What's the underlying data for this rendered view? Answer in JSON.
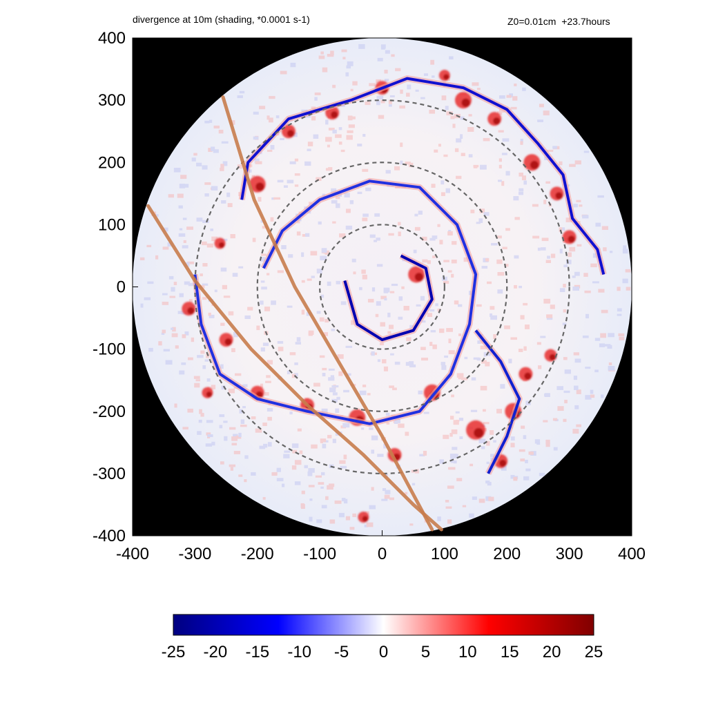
{
  "chart_data": {
    "type": "heatmap",
    "title": "divergence at 10m (shading, *0.0001 s-1)",
    "subtitle": "Z0=0.01cm  +23.7hours",
    "xlabel": "",
    "ylabel": "",
    "xlim": [
      -400,
      400
    ],
    "ylim": [
      -400,
      400
    ],
    "x_ticks": [
      -400,
      -300,
      -200,
      -100,
      0,
      100,
      200,
      300,
      400
    ],
    "y_ticks": [
      400,
      300,
      200,
      100,
      0,
      -100,
      -200,
      -300,
      -400
    ],
    "colorbar": {
      "range": [
        -25,
        25
      ],
      "ticks": [
        -25,
        -20,
        -15,
        -10,
        -5,
        0,
        5,
        10,
        15,
        20,
        25
      ],
      "colors": [
        "#000080",
        "#0000ff",
        "#ffffff",
        "#ff0000",
        "#800000"
      ]
    },
    "domain_radius": 400,
    "range_rings": [
      100,
      200,
      300
    ],
    "tracks": [
      {
        "color": "#c87c4c",
        "points": [
          [
            -255,
            305
          ],
          [
            -205,
            140
          ],
          [
            -140,
            0
          ],
          [
            -70,
            -120
          ],
          [
            0,
            -240
          ],
          [
            80,
            -390
          ]
        ]
      },
      {
        "color": "#c87c4c",
        "points": [
          [
            -375,
            130
          ],
          [
            -300,
            10
          ],
          [
            -210,
            -100
          ],
          [
            -120,
            -190
          ],
          [
            -30,
            -270
          ],
          [
            50,
            -350
          ],
          [
            95,
            -390
          ]
        ]
      }
    ],
    "rainbands": [
      {
        "points": [
          [
            -225,
            140
          ],
          [
            -215,
            200
          ],
          [
            -150,
            270
          ],
          [
            -50,
            300
          ],
          [
            40,
            335
          ],
          [
            130,
            320
          ],
          [
            200,
            285
          ],
          [
            250,
            230
          ],
          [
            290,
            180
          ],
          [
            305,
            110
          ],
          [
            345,
            60
          ],
          [
            355,
            20
          ]
        ],
        "color": "#1010d0"
      },
      {
        "points": [
          [
            -190,
            30
          ],
          [
            -160,
            90
          ],
          [
            -100,
            140
          ],
          [
            -20,
            170
          ],
          [
            60,
            160
          ],
          [
            120,
            100
          ],
          [
            150,
            20
          ],
          [
            140,
            -60
          ],
          [
            110,
            -140
          ],
          [
            60,
            -200
          ],
          [
            -20,
            -220
          ],
          [
            -120,
            -200
          ],
          [
            -200,
            -180
          ],
          [
            -260,
            -140
          ],
          [
            -290,
            -60
          ],
          [
            -300,
            20
          ]
        ],
        "color": "#2030e0"
      },
      {
        "points": [
          [
            -60,
            10
          ],
          [
            -40,
            -60
          ],
          [
            0,
            -85
          ],
          [
            50,
            -70
          ],
          [
            80,
            -20
          ],
          [
            70,
            30
          ],
          [
            30,
            50
          ]
        ],
        "color": "#0000b0"
      },
      {
        "points": [
          [
            150,
            -70
          ],
          [
            190,
            -120
          ],
          [
            220,
            -180
          ],
          [
            200,
            -240
          ],
          [
            170,
            -300
          ]
        ],
        "color": "#1020d0"
      }
    ],
    "convergence_cells": [
      {
        "x": 55,
        "y": 20,
        "r": 12
      },
      {
        "x": -310,
        "y": -35,
        "r": 10
      },
      {
        "x": -200,
        "y": 165,
        "r": 12
      },
      {
        "x": -150,
        "y": 250,
        "r": 10
      },
      {
        "x": -80,
        "y": 280,
        "r": 10
      },
      {
        "x": 0,
        "y": 320,
        "r": 10
      },
      {
        "x": 130,
        "y": 300,
        "r": 12
      },
      {
        "x": 180,
        "y": 270,
        "r": 10
      },
      {
        "x": 240,
        "y": 200,
        "r": 12
      },
      {
        "x": 280,
        "y": 150,
        "r": 10
      },
      {
        "x": 300,
        "y": 80,
        "r": 10
      },
      {
        "x": -250,
        "y": -85,
        "r": 10
      },
      {
        "x": -200,
        "y": -170,
        "r": 10
      },
      {
        "x": -120,
        "y": -190,
        "r": 10
      },
      {
        "x": -40,
        "y": -210,
        "r": 12
      },
      {
        "x": 80,
        "y": -170,
        "r": 12
      },
      {
        "x": 150,
        "y": -230,
        "r": 14
      },
      {
        "x": 210,
        "y": -200,
        "r": 12
      },
      {
        "x": 190,
        "y": -280,
        "r": 10
      },
      {
        "x": 230,
        "y": -140,
        "r": 10
      },
      {
        "x": -30,
        "y": -370,
        "r": 8
      },
      {
        "x": 20,
        "y": -270,
        "r": 10
      },
      {
        "x": 100,
        "y": 340,
        "r": 8
      },
      {
        "x": -260,
        "y": 70,
        "r": 8
      },
      {
        "x": -280,
        "y": -170,
        "r": 8
      },
      {
        "x": 270,
        "y": -110,
        "r": 9
      }
    ]
  }
}
